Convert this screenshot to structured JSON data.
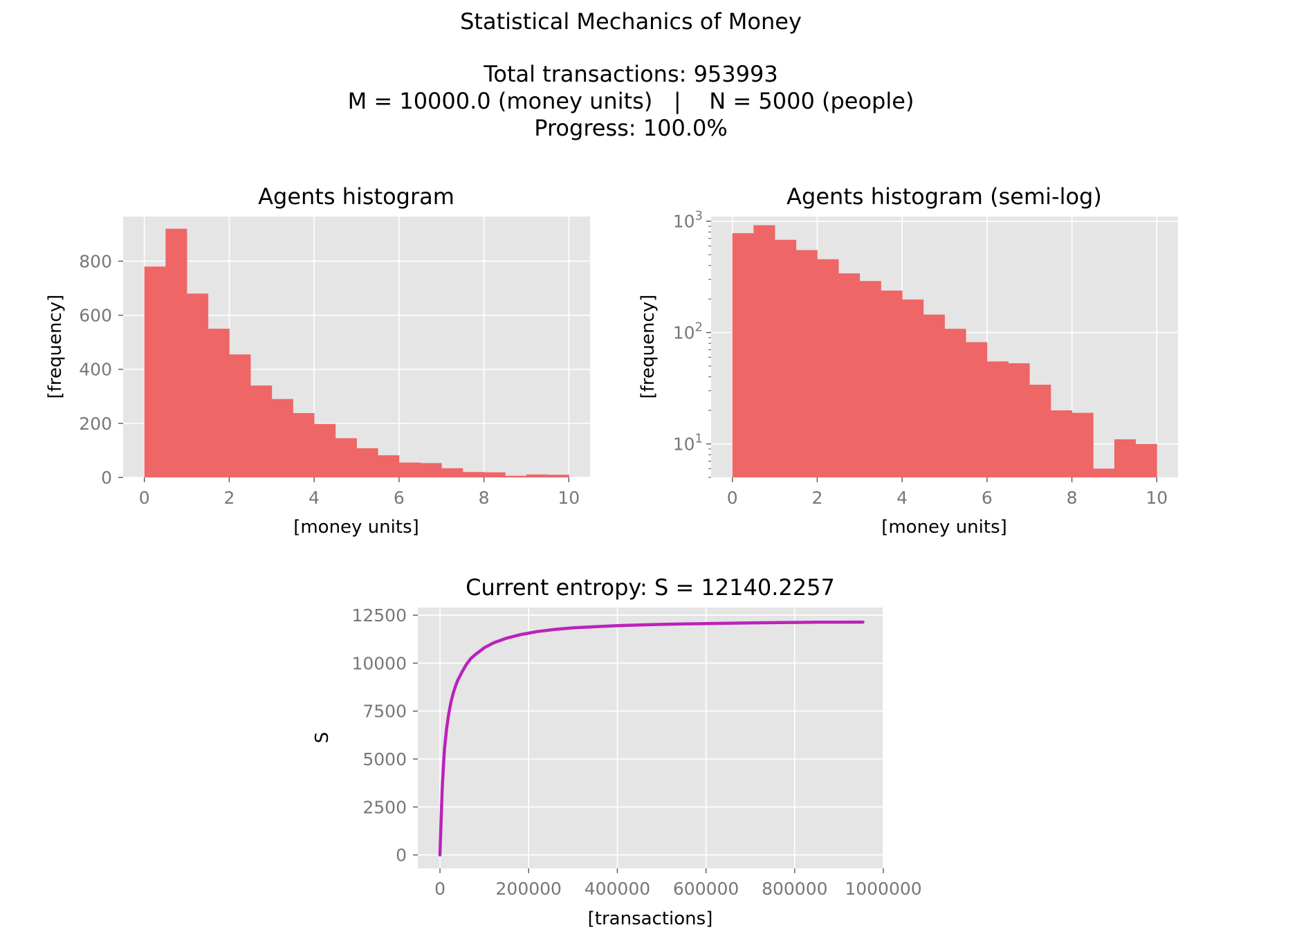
{
  "figure": {
    "suptitle_lines": [
      "Statistical Mechanics of Money",
      "",
      "Total transactions: 953993",
      "M = 10000.0 (money units)   |    N = 5000 (people)",
      "Progress: 100.0%"
    ]
  },
  "colors": {
    "histogram": "#EE6666",
    "entropy_line": "#BB22BB",
    "panel_bg": "#E5E5E5",
    "grid": "#FFFFFF",
    "tick_text": "#777777"
  },
  "chart_data": [
    {
      "id": "hist_linear",
      "type": "bar",
      "title": "Agents histogram",
      "xlabel": "[money units]",
      "ylabel": "[frequency]",
      "bin_edges": [
        0,
        0.5,
        1,
        1.5,
        2,
        2.5,
        3,
        3.5,
        4,
        4.5,
        5,
        5.5,
        6,
        6.5,
        7,
        7.5,
        8,
        8.5,
        9,
        9.5,
        10
      ],
      "values": [
        780,
        920,
        680,
        550,
        455,
        340,
        290,
        238,
        198,
        145,
        108,
        82,
        55,
        53,
        34,
        20,
        19,
        6,
        11,
        10
      ],
      "xlim": [
        -0.5,
        10.5
      ],
      "ylim": [
        0,
        965
      ],
      "xticks": [
        0,
        2,
        4,
        6,
        8,
        10
      ],
      "yticks": [
        0,
        200,
        400,
        600,
        800
      ],
      "grid": true
    },
    {
      "id": "hist_semilog",
      "type": "bar",
      "title": "Agents histogram (semi-log)",
      "xlabel": "[money units]",
      "ylabel": "[frequency]",
      "yscale": "log",
      "bin_edges": [
        0,
        0.5,
        1,
        1.5,
        2,
        2.5,
        3,
        3.5,
        4,
        4.5,
        5,
        5.5,
        6,
        6.5,
        7,
        7.5,
        8,
        8.5,
        9,
        9.5,
        10
      ],
      "values": [
        780,
        920,
        680,
        550,
        455,
        340,
        290,
        238,
        198,
        145,
        108,
        82,
        55,
        53,
        34,
        20,
        19,
        6,
        11,
        10
      ],
      "xlim": [
        -0.5,
        10.5
      ],
      "ylim": [
        5,
        1100
      ],
      "xticks": [
        0,
        2,
        4,
        6,
        8,
        10
      ],
      "yticks": [
        10,
        100,
        1000
      ],
      "ytick_labels": [
        {
          "base": "10",
          "exp": "1"
        },
        {
          "base": "10",
          "exp": "2"
        },
        {
          "base": "10",
          "exp": "3"
        }
      ],
      "grid": true
    },
    {
      "id": "entropy",
      "type": "line",
      "title": "Current entropy: S = 12140.2257",
      "xlabel": "[transactions]",
      "ylabel": "S",
      "xlim": [
        -50000,
        1000000
      ],
      "ylim": [
        -700,
        12900
      ],
      "xticks": [
        0,
        200000,
        400000,
        600000,
        800000,
        1000000
      ],
      "yticks": [
        0,
        2500,
        5000,
        7500,
        10000,
        12500
      ],
      "series": [
        {
          "x": [
            0,
            5000,
            10000,
            15000,
            20000,
            25000,
            30000,
            35000,
            40000,
            50000,
            60000,
            70000,
            80000,
            100000,
            120000,
            150000,
            180000,
            220000,
            260000,
            300000,
            350000,
            400000,
            450000,
            500000,
            550000,
            600000,
            650000,
            700000,
            750000,
            800000,
            850000,
            900000,
            953993
          ],
          "y": [
            0,
            3500,
            5500,
            6600,
            7400,
            8000,
            8450,
            8800,
            9100,
            9550,
            9950,
            10250,
            10450,
            10800,
            11050,
            11300,
            11480,
            11650,
            11760,
            11840,
            11900,
            11950,
            11990,
            12020,
            12040,
            12060,
            12080,
            12095,
            12110,
            12120,
            12130,
            12135,
            12140
          ]
        }
      ],
      "grid": true
    }
  ]
}
